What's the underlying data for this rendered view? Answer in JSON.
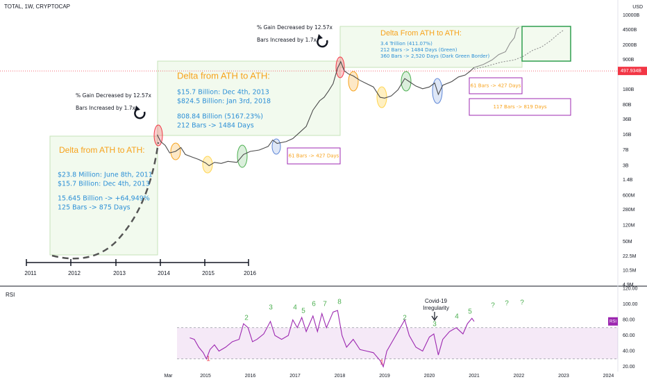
{
  "chart_data": [
    {
      "type": "line",
      "title": "TOTAL, 1W, CRYPTOCAP",
      "y_unit": "USD",
      "log_scale": true,
      "xlim": [
        2010.41,
        2024.21
      ],
      "xticks": [
        {
          "value": 2014.17,
          "label": "Mar"
        },
        2015,
        2016,
        2017,
        2018,
        2019,
        2020,
        2021,
        2022,
        2023,
        2024
      ],
      "ylim": [
        0.0049,
        22800
      ],
      "yticks": [
        {
          "value": 10000,
          "label": "10000B"
        },
        {
          "value": 4500,
          "label": "4500B"
        },
        {
          "value": 2000,
          "label": "2000B"
        },
        {
          "value": 900,
          "label": "900B"
        },
        {
          "value": 180,
          "label": "180B"
        },
        {
          "value": 80,
          "label": "80B"
        },
        {
          "value": 36,
          "label": "36B"
        },
        {
          "value": 16,
          "label": "16B"
        },
        {
          "value": 7,
          "label": "7B"
        },
        {
          "value": 3,
          "label": "3B"
        },
        {
          "value": 1.4,
          "label": "1.4B"
        },
        {
          "value": 0.6,
          "label": "600M"
        },
        {
          "value": 0.28,
          "label": "280M"
        },
        {
          "value": 0.12,
          "label": "120M"
        },
        {
          "value": 0.05,
          "label": "50M"
        },
        {
          "value": 0.0225,
          "label": "22.5M"
        },
        {
          "value": 0.0105,
          "label": "10.5M"
        },
        {
          "value": 0.0049,
          "label": "4.9M"
        }
      ],
      "series": [
        {
          "color": "#4a4a4a",
          "dash": false,
          "x": [
            2013.92,
            2014.0,
            2014.1,
            2014.2,
            2014.33,
            2014.45,
            2014.55,
            2014.7,
            2014.85,
            2015.0,
            2015.08,
            2015.2,
            2015.35,
            2015.5,
            2015.7,
            2015.85,
            2016.0,
            2016.2,
            2016.4,
            2016.5,
            2016.6,
            2016.8,
            2016.95,
            2017.1,
            2017.25,
            2017.4,
            2017.55,
            2017.65,
            2017.75,
            2017.85,
            2017.95,
            2018.02,
            2018.1,
            2018.2,
            2018.3,
            2018.45,
            2018.6,
            2018.75,
            2018.9,
            2019.0,
            2019.15,
            2019.3,
            2019.45,
            2019.55,
            2019.7,
            2019.85,
            2020.0,
            2020.12,
            2020.2,
            2020.3,
            2020.5,
            2020.65,
            2020.8,
            2020.9,
            2021.0
          ],
          "values": [
            16,
            11,
            9,
            6,
            6.5,
            8,
            5.5,
            4.8,
            4.2,
            3.5,
            3.0,
            3.6,
            3.4,
            3.8,
            3.6,
            5.5,
            6.5,
            7,
            8.5,
            12,
            10,
            11,
            13,
            18,
            25,
            60,
            100,
            120,
            170,
            250,
            580,
            820,
            500,
            420,
            380,
            300,
            250,
            210,
            120,
            115,
            130,
            180,
            330,
            280,
            220,
            190,
            210,
            260,
            140,
            230,
            280,
            360,
            400,
            480,
            600
          ]
        },
        {
          "color": "#8f8f8f",
          "dash": false,
          "x": [
            2021.0,
            2021.2,
            2021.4,
            2021.55,
            2021.7,
            2021.8,
            2021.9,
            2021.95,
            2022.0
          ],
          "values": [
            600,
            700,
            900,
            1200,
            1400,
            2200,
            3000,
            4800,
            5200
          ]
        },
        {
          "color": "#8f8f8f",
          "dash": true,
          "x": [
            2021.0,
            2021.3,
            2021.6,
            2021.9,
            2022.1,
            2022.3,
            2022.5,
            2022.7,
            2022.9,
            2023.0
          ],
          "values": [
            550,
            650,
            800,
            900,
            1100,
            1500,
            1800,
            2500,
            3800,
            4500
          ]
        }
      ],
      "last_price": {
        "value": 497.934,
        "label": "497.934B"
      },
      "last_price_color": "#f23645"
    },
    {
      "type": "line",
      "title": "RSI",
      "ylim": [
        20,
        120
      ],
      "yticks": [
        {
          "value": 120,
          "label": "120.00"
        },
        {
          "value": 100,
          "label": "100.00"
        },
        {
          "value": 80,
          "label": "80.00"
        },
        {
          "value": 60,
          "label": "60.00"
        },
        {
          "value": 40,
          "label": "40.00"
        },
        {
          "value": 20,
          "label": "20.00"
        }
      ],
      "levels": [
        30,
        70
      ],
      "band_color": "#9c27b0",
      "series": [
        {
          "color": "#9c27b0",
          "x": [
            2014.65,
            2014.75,
            2014.85,
            2014.95,
            2015.02,
            2015.1,
            2015.2,
            2015.3,
            2015.45,
            2015.6,
            2015.75,
            2015.85,
            2015.95,
            2016.05,
            2016.15,
            2016.3,
            2016.45,
            2016.55,
            2016.7,
            2016.85,
            2016.95,
            2017.05,
            2017.15,
            2017.25,
            2017.4,
            2017.5,
            2017.6,
            2017.7,
            2017.85,
            2017.95,
            2018.05,
            2018.15,
            2018.3,
            2018.45,
            2018.6,
            2018.75,
            2018.9,
            2018.97,
            2019.05,
            2019.2,
            2019.35,
            2019.45,
            2019.55,
            2019.7,
            2019.85,
            2020.0,
            2020.1,
            2020.2,
            2020.3,
            2020.45,
            2020.6,
            2020.75,
            2020.85,
            2020.95,
            2021.0
          ],
          "values": [
            57,
            55,
            45,
            38,
            30,
            42,
            48,
            40,
            45,
            52,
            55,
            75,
            70,
            52,
            55,
            62,
            78,
            60,
            55,
            60,
            80,
            70,
            83,
            65,
            85,
            65,
            88,
            70,
            90,
            92,
            60,
            45,
            55,
            42,
            40,
            38,
            28,
            20,
            40,
            55,
            70,
            80,
            60,
            45,
            40,
            58,
            62,
            35,
            55,
            65,
            70,
            62,
            75,
            82,
            78
          ]
        }
      ]
    }
  ],
  "annotations": {
    "gain_notes": [
      {
        "line1": "% Gain Decreased by 12.57x",
        "line2": "Bars Increased by 1.7x"
      },
      {
        "line1": "% Gain Decreased by 12.57x",
        "line2": "Bars Increased by 1.7x"
      }
    ],
    "boxes": [
      {
        "title": "Delta from ATH to ATH:",
        "lines": [
          "$23.8 Million: June 8th, 2011",
          "$15.7 Billion: Dec 4th, 2013",
          "15.645 Billion -> +64,949%",
          "125 Bars -> 875 Days"
        ]
      },
      {
        "title": "Delta from ATH to ATH:",
        "lines": [
          "$15.7 Billion: Dec 4th, 2013",
          "$824.5 Billion: Jan 3rd, 2018",
          "808.84 Billion (5167.23%)",
          "212 Bars -> 1484 Days"
        ]
      },
      {
        "title": "Delta From ATH to ATH:",
        "lines": [
          "3.4 Trillion (411.07%)",
          "212 Bars -> 1484 Days (Green)",
          "360 Bars -> 2,520 Days (Dark Green Border)"
        ]
      }
    ],
    "bar_notes": [
      "61 Bars -> 427 Days",
      "61 Bars -> 427 Days",
      "117 Bars -> 819 Days"
    ],
    "timeline": [
      2011,
      2012,
      2013,
      2014,
      2015,
      2016
    ],
    "waves": [
      "1",
      "2",
      "3",
      "4",
      "5",
      "6",
      "7",
      "8",
      "1",
      "2",
      "3",
      "4",
      "5",
      "?",
      "?",
      "?"
    ],
    "covid": [
      "Covid-19",
      "Irregularity"
    ]
  }
}
